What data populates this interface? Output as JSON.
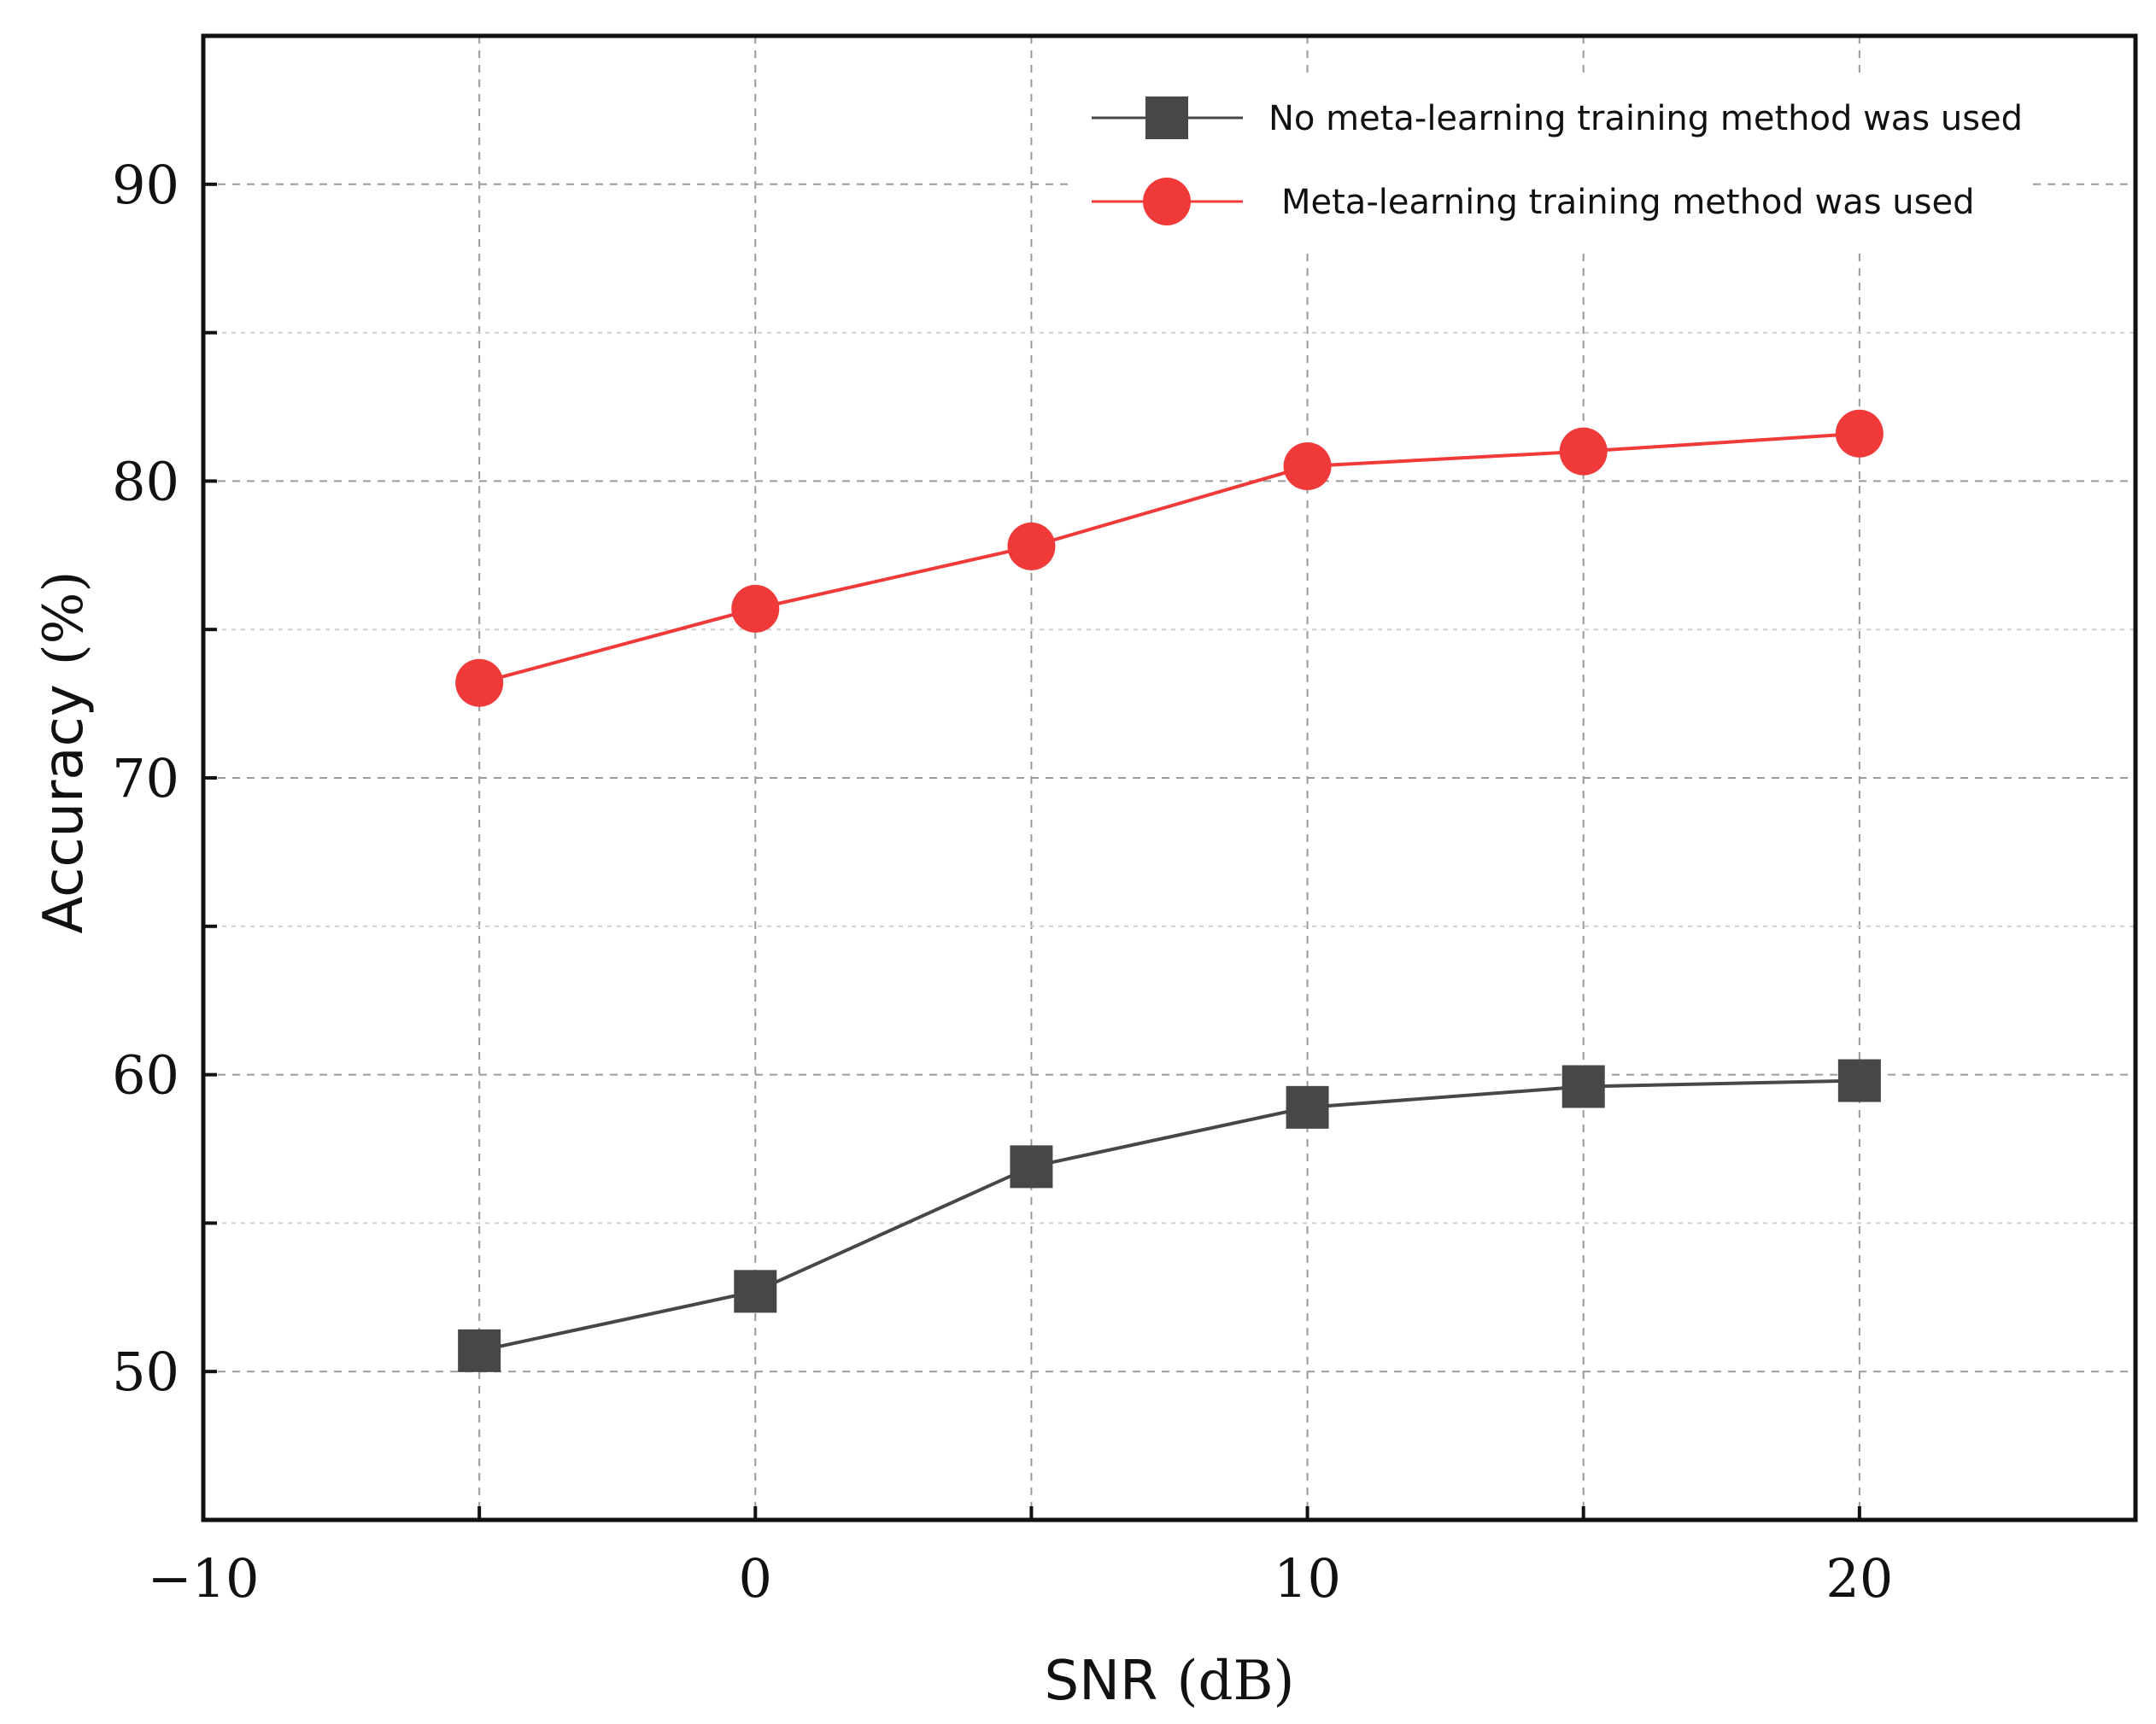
{
  "chart_data": {
    "type": "line",
    "title": "",
    "xlabel": "SNR",
    "xlabel_unit": "(dB)",
    "ylabel": "Accuracy",
    "ylabel_unit": "(%)",
    "xlim": [
      -10,
      25
    ],
    "ylim": [
      45,
      95
    ],
    "xticks": [
      -10,
      0,
      10,
      20
    ],
    "xtick_labels": [
      "−10",
      "0",
      "10",
      "20"
    ],
    "xgrid": [
      -5,
      0,
      5,
      10,
      15,
      20
    ],
    "yticks": [
      50,
      60,
      70,
      80,
      90
    ],
    "ytick_labels": [
      "50",
      "60",
      "70",
      "80",
      "90"
    ],
    "ygrid_minor": [
      55,
      65,
      75,
      85
    ],
    "grid": true,
    "legend_position": "top-right",
    "x": [
      -5,
      0,
      5,
      10,
      15,
      20
    ],
    "series": [
      {
        "name": "No meta-learning training method was used",
        "marker": "square",
        "color": "#474747",
        "values": [
          50.7,
          52.7,
          56.9,
          58.9,
          59.6,
          59.8
        ]
      },
      {
        "name": "Meta-learning training method was used",
        "marker": "circle",
        "color": "#f03a3a",
        "values": [
          73.2,
          75.7,
          77.8,
          80.5,
          81.0,
          81.6
        ]
      }
    ]
  }
}
